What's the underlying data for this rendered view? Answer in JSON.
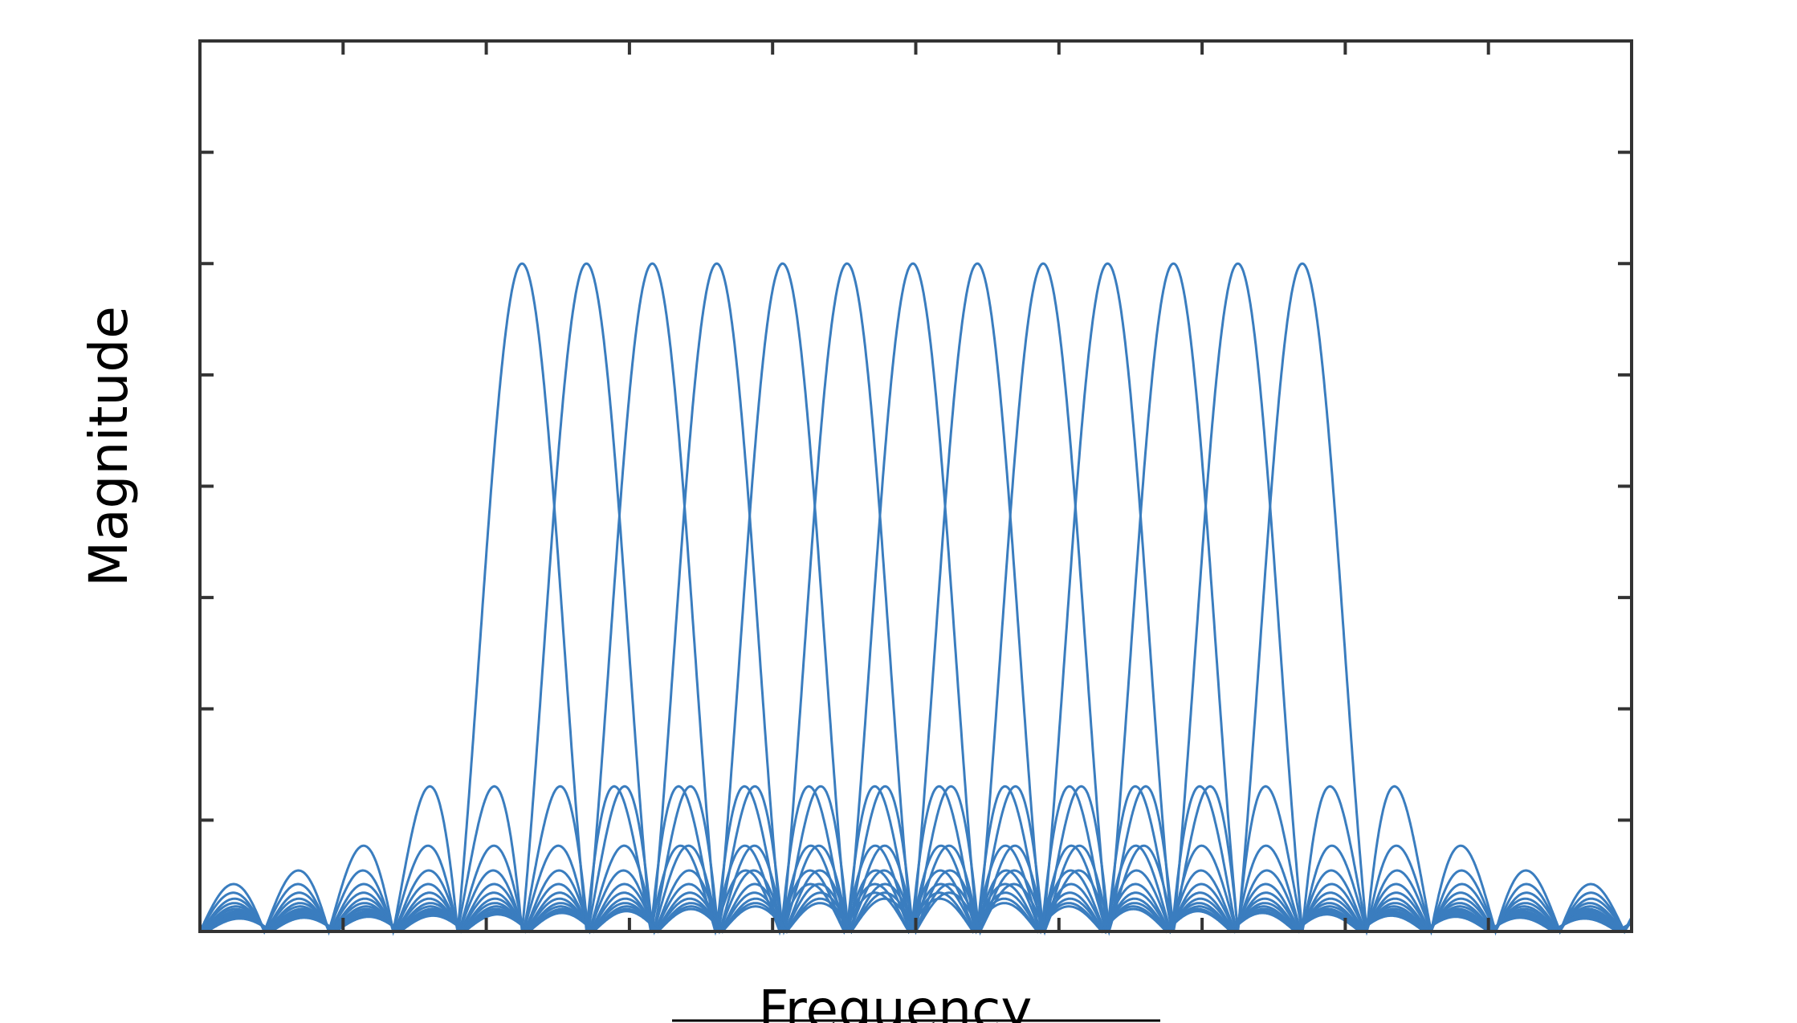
{
  "chart_data": {
    "type": "sinc",
    "xlabel": "Frequency",
    "ylabel": "Magnitude",
    "xlim": [
      0,
      10
    ],
    "ylim": [
      0,
      8
    ],
    "xticks": [
      0,
      1,
      2,
      3,
      4,
      5,
      6,
      7,
      8,
      9,
      10
    ],
    "yticks": [
      0,
      1,
      2,
      3,
      4,
      5,
      6,
      7,
      8
    ],
    "color": "#3a7dbf",
    "peaks_x": [
      2.25,
      2.7,
      3.16,
      3.61,
      4.07,
      4.52,
      4.98,
      5.43,
      5.89,
      6.34,
      6.8,
      7.25,
      7.7
    ],
    "peaks_y": [
      6,
      6,
      6,
      6,
      6,
      6,
      6,
      6,
      6,
      6,
      6,
      6,
      6
    ]
  }
}
